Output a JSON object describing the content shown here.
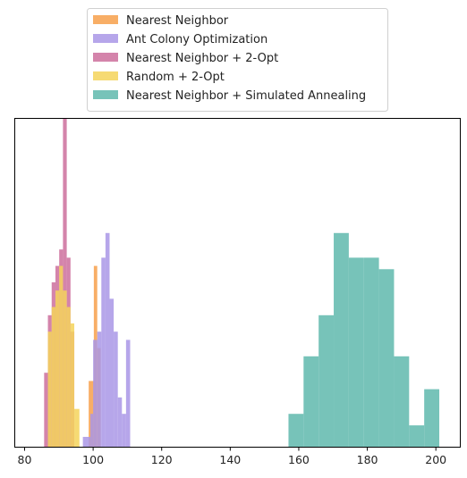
{
  "chart_data": {
    "type": "histogram",
    "title": "",
    "xlabel": "",
    "ylabel": "",
    "xlim": [
      77,
      207
    ],
    "ylim": [
      0,
      20
    ],
    "y_axis_visible": false,
    "grid": false,
    "legend_position": "top-center, outside plot",
    "x_ticks": [
      80,
      100,
      120,
      140,
      160,
      180,
      200
    ],
    "series": [
      {
        "name": "Nearest Neighbor",
        "color": "#f7a04b",
        "bins": [
          {
            "x0": 98.7,
            "x1": 100.2,
            "count": 4
          },
          {
            "x0": 100.2,
            "x1": 101.2,
            "count": 11
          },
          {
            "x0": 101.2,
            "x1": 102.2,
            "count": 6
          }
        ]
      },
      {
        "name": "Ant Colony Optimization",
        "color": "#a997e6",
        "bins": [
          {
            "x0": 97.0,
            "x1": 99.2,
            "count": 0.6
          },
          {
            "x0": 99.2,
            "x1": 100.0,
            "count": 2
          },
          {
            "x0": 100.0,
            "x1": 101.2,
            "count": 6.5
          },
          {
            "x0": 101.2,
            "x1": 102.4,
            "count": 7
          },
          {
            "x0": 102.4,
            "x1": 103.6,
            "count": 11.5
          },
          {
            "x0": 103.6,
            "x1": 104.8,
            "count": 13
          },
          {
            "x0": 104.8,
            "x1": 106.0,
            "count": 9
          },
          {
            "x0": 106.0,
            "x1": 107.2,
            "count": 7
          },
          {
            "x0": 107.2,
            "x1": 108.4,
            "count": 3
          },
          {
            "x0": 108.4,
            "x1": 109.6,
            "count": 2
          },
          {
            "x0": 109.6,
            "x1": 110.8,
            "count": 6.5
          }
        ]
      },
      {
        "name": "Nearest Neighbor + 2-Opt",
        "color": "#cc6f9c",
        "bins": [
          {
            "x0": 85.7,
            "x1": 86.8,
            "count": 4.5
          },
          {
            "x0": 86.8,
            "x1": 87.9,
            "count": 8
          },
          {
            "x0": 87.9,
            "x1": 89.0,
            "count": 10
          },
          {
            "x0": 89.0,
            "x1": 90.1,
            "count": 11
          },
          {
            "x0": 90.1,
            "x1": 91.2,
            "count": 12
          },
          {
            "x0": 91.2,
            "x1": 92.3,
            "count": 20
          },
          {
            "x0": 92.3,
            "x1": 93.4,
            "count": 11.5
          },
          {
            "x0": 93.4,
            "x1": 94.5,
            "count": 7
          }
        ]
      },
      {
        "name": "Random + 2-Opt",
        "color": "#f5d35a",
        "bins": [
          {
            "x0": 86.8,
            "x1": 87.9,
            "count": 7
          },
          {
            "x0": 87.9,
            "x1": 89.0,
            "count": 8.5
          },
          {
            "x0": 89.0,
            "x1": 90.1,
            "count": 9.5
          },
          {
            "x0": 90.1,
            "x1": 91.2,
            "count": 11
          },
          {
            "x0": 91.2,
            "x1": 92.3,
            "count": 9.5
          },
          {
            "x0": 92.3,
            "x1": 93.4,
            "count": 8.5
          },
          {
            "x0": 93.4,
            "x1": 94.5,
            "count": 7.5
          },
          {
            "x0": 94.5,
            "x1": 96.0,
            "count": 2.3
          }
        ]
      },
      {
        "name": "Nearest Neighbor + Simulated Annealing",
        "color": "#5fb8ad",
        "bins": [
          {
            "x0": 157.0,
            "x1": 161.4,
            "count": 2
          },
          {
            "x0": 161.4,
            "x1": 165.8,
            "count": 5.5
          },
          {
            "x0": 165.8,
            "x1": 170.2,
            "count": 8
          },
          {
            "x0": 170.2,
            "x1": 174.6,
            "count": 13
          },
          {
            "x0": 174.6,
            "x1": 179.0,
            "count": 11.5
          },
          {
            "x0": 179.0,
            "x1": 183.4,
            "count": 11.5
          },
          {
            "x0": 183.4,
            "x1": 187.8,
            "count": 10.8
          },
          {
            "x0": 187.8,
            "x1": 192.2,
            "count": 5.5
          },
          {
            "x0": 192.2,
            "x1": 196.6,
            "count": 1.3
          },
          {
            "x0": 196.6,
            "x1": 201.0,
            "count": 3.5
          }
        ]
      }
    ],
    "draw_order": [
      "Nearest Neighbor + Simulated Annealing",
      "Nearest Neighbor",
      "Nearest Neighbor + 2-Opt",
      "Ant Colony Optimization",
      "Random + 2-Opt"
    ],
    "alpha": 0.85
  }
}
